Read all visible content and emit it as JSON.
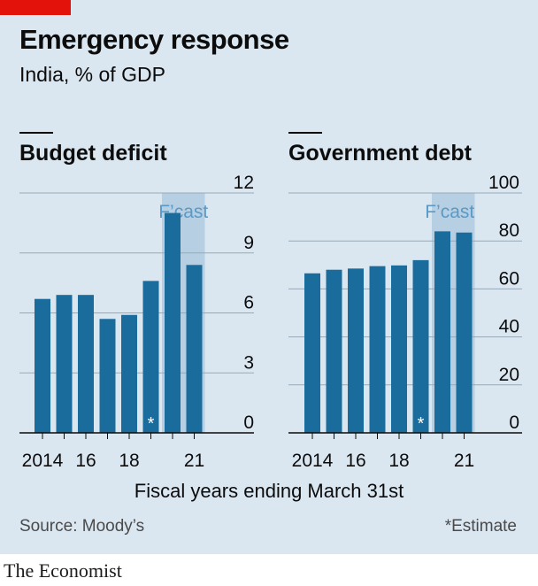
{
  "header": {
    "title": "Emergency response",
    "subtitle": "India, % of GDP"
  },
  "xlabel": "Fiscal years ending March 31st",
  "footer": {
    "source": "Source: Moody’s",
    "note": "*Estimate"
  },
  "brand": "The Economist",
  "colors": {
    "bar": "#1a6c9c",
    "forecast_band": "#b7cfe2",
    "forecast_label": "#5a9ac6",
    "accent": "#e3120b",
    "background": "#dae7f1",
    "grid": "#97a9b6"
  },
  "chart_data": [
    {
      "type": "bar",
      "title": "Budget deficit",
      "categories": [
        "2014",
        "",
        "16",
        "",
        "18",
        "",
        "",
        "21"
      ],
      "values": [
        6.7,
        6.9,
        6.9,
        5.7,
        5.9,
        7.6,
        11.0,
        8.4
      ],
      "ylim": [
        0,
        12
      ],
      "yticks": [
        0,
        3,
        6,
        9,
        12
      ],
      "estimate_index": 5,
      "estimate_marker": "*",
      "forecast_indices": [
        6,
        7
      ],
      "forecast_label": "F’cast",
      "grid": true
    },
    {
      "type": "bar",
      "title": "Government debt",
      "categories": [
        "2014",
        "",
        "16",
        "",
        "18",
        "",
        "",
        "21"
      ],
      "values": [
        66.5,
        68,
        68.5,
        69.5,
        69.8,
        72,
        84,
        83.5
      ],
      "ylim": [
        0,
        100
      ],
      "yticks": [
        0,
        20,
        40,
        60,
        80,
        100
      ],
      "estimate_index": 5,
      "estimate_marker": "*",
      "forecast_indices": [
        6,
        7
      ],
      "forecast_label": "F’cast",
      "grid": true
    }
  ]
}
